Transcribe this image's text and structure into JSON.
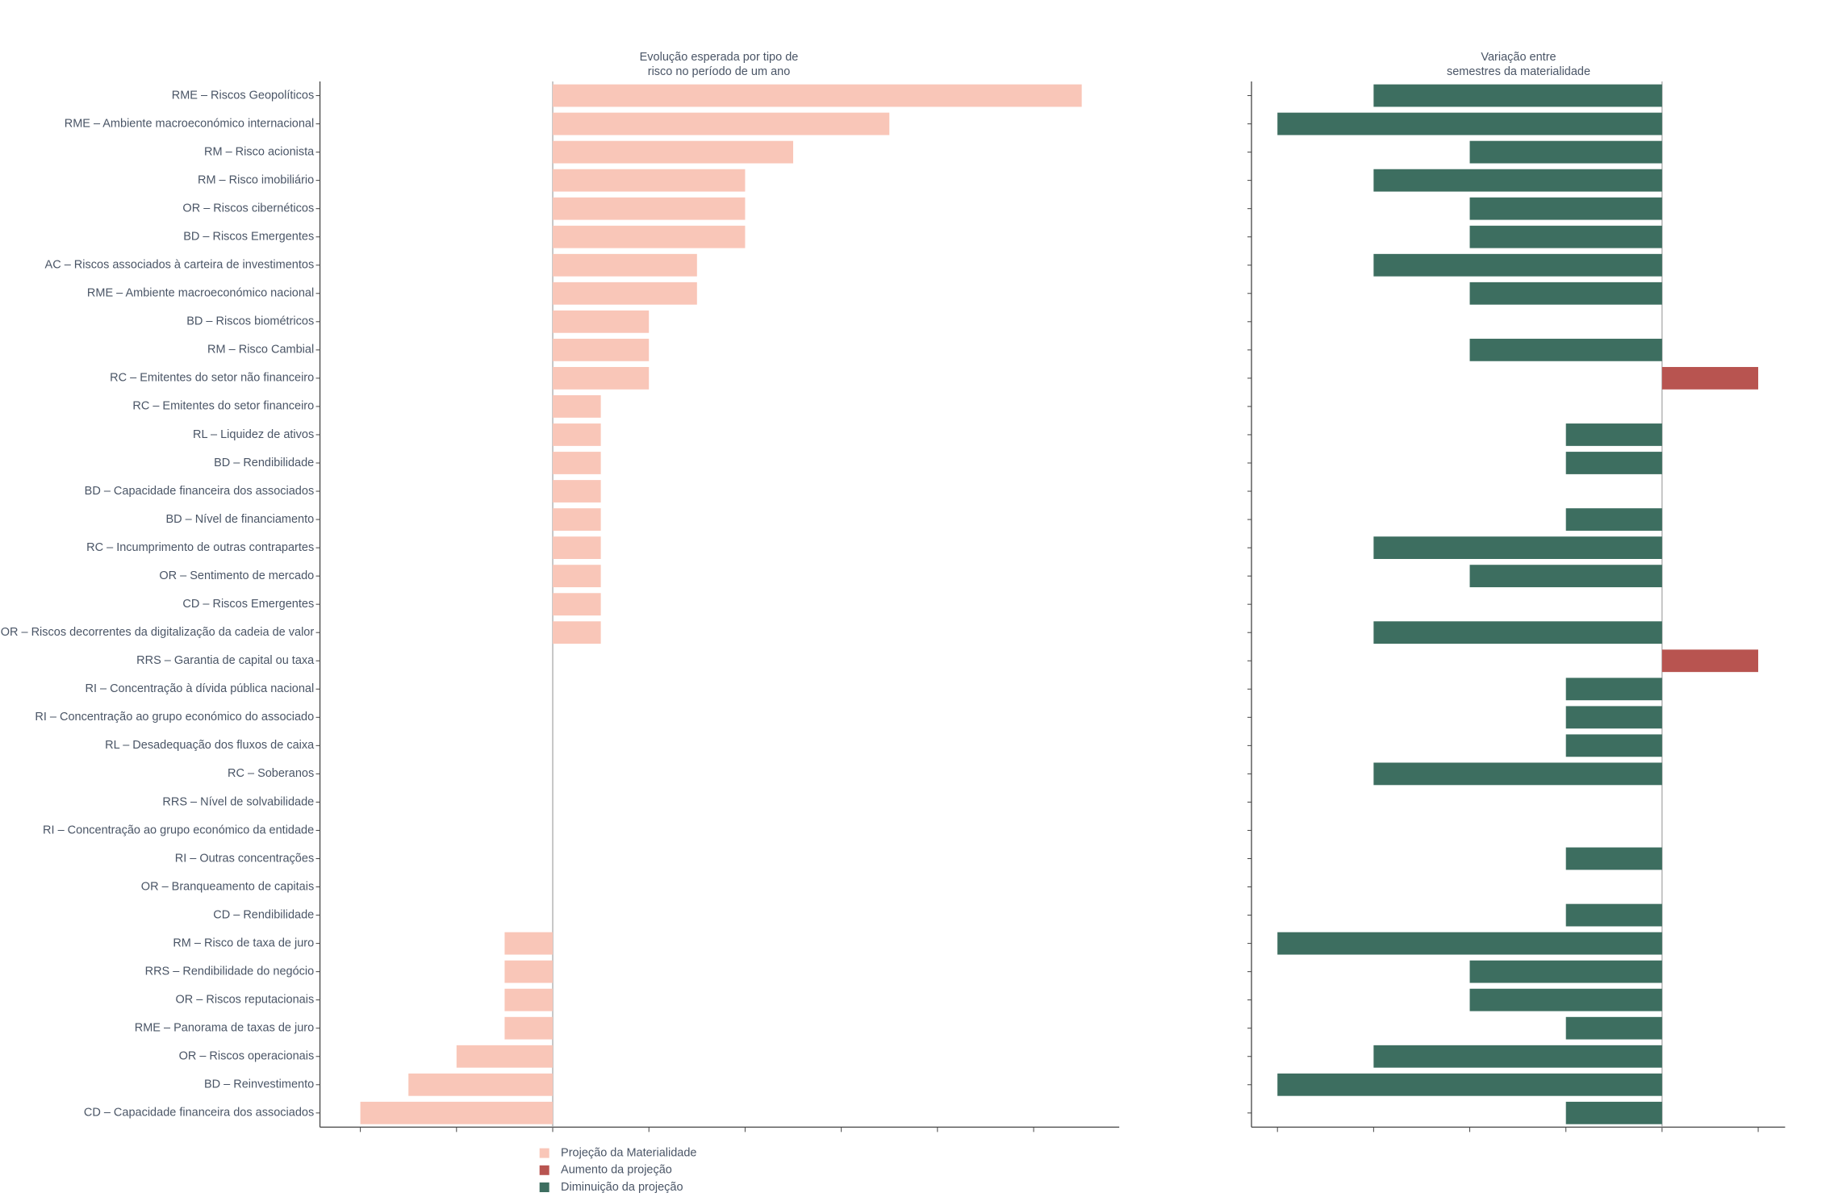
{
  "chart_data": [
    {
      "type": "bar",
      "orientation": "horizontal",
      "title": "Evolução esperada por tipo de\nrisco no período de um ano",
      "categories": [
        "RME – Riscos Geopolíticos",
        "RME – Ambiente macroeconómico internacional",
        "RM – Risco acionista",
        "RM – Risco imobiliário",
        "OR – Riscos cibernéticos",
        "BD – Riscos Emergentes",
        "AC – Riscos associados à carteira de investimentos",
        "RME – Ambiente macroeconómico nacional",
        "BD – Riscos biométricos",
        "RM – Risco Cambial",
        "RC – Emitentes do setor não financeiro",
        "RC – Emitentes do setor financeiro",
        "RL – Liquidez de ativos",
        "BD – Rendibilidade",
        "BD – Capacidade financeira dos associados",
        "BD – Nível de financiamento",
        "RC – Incumprimento de outras contrapartes",
        "OR – Sentimento de mercado",
        "CD – Riscos Emergentes",
        "OR – Riscos decorrentes da digitalização da cadeia de valor",
        "RRS – Garantia de capital ou taxa",
        "RI – Concentração à dívida pública nacional",
        "RI – Concentração ao grupo económico do associado",
        "RL – Desadequação dos fluxos de caixa",
        "RC – Soberanos",
        "RRS – Nível de solvabilidade",
        "RI – Concentração ao grupo económico da entidade",
        "RI – Outras concentrações",
        "OR – Branqueamento de capitais",
        "CD – Rendibilidade",
        "RM – Risco de taxa de juro",
        "RRS – Rendibilidade do negócio",
        "OR – Riscos reputacionais",
        "RME – Panorama de taxas de juro",
        "OR – Riscos operacionais",
        "BD – Reinvestimento",
        "CD – Capacidade financeira dos associados"
      ],
      "series": [
        {
          "name": "Projeção da Materialidade",
          "color": "#f9c6b8",
          "values": [
            5.5,
            3.5,
            2.5,
            2,
            2,
            2,
            1.5,
            1.5,
            1,
            1,
            1,
            0.5,
            0.5,
            0.5,
            0.5,
            0.5,
            0.5,
            0.5,
            0.5,
            0.5,
            0,
            0,
            0,
            0,
            0,
            0,
            0,
            0,
            0,
            0,
            -0.5,
            -0.5,
            -0.5,
            -0.5,
            -1,
            -1.5,
            -2
          ]
        }
      ],
      "xlim": [
        -2.42,
        5.89
      ],
      "xticks": [
        -2,
        -1,
        0,
        1,
        2,
        3,
        4,
        5
      ]
    },
    {
      "type": "bar",
      "orientation": "horizontal",
      "title": "Variação entre\nsemestres da materialidade",
      "values": [
        -3,
        -4,
        -2,
        -3,
        -2,
        -2,
        -3,
        -2,
        0,
        -2,
        1,
        0,
        -1,
        -1,
        0,
        -1,
        -3,
        -2,
        0,
        -3,
        1,
        -1,
        -1,
        -1,
        -3,
        0,
        0,
        -1,
        0,
        -1,
        -4,
        -2,
        -2,
        -1,
        -3,
        -4,
        -1
      ],
      "legend": [
        {
          "name": "Aumento da projeção",
          "color": "#b85450"
        },
        {
          "name": "Diminuição da projeção",
          "color": "#3d6e60"
        }
      ],
      "xlim": [
        -4.27,
        1.28
      ],
      "xticks": [
        -4,
        -3,
        -2,
        -1,
        0,
        1
      ]
    }
  ]
}
